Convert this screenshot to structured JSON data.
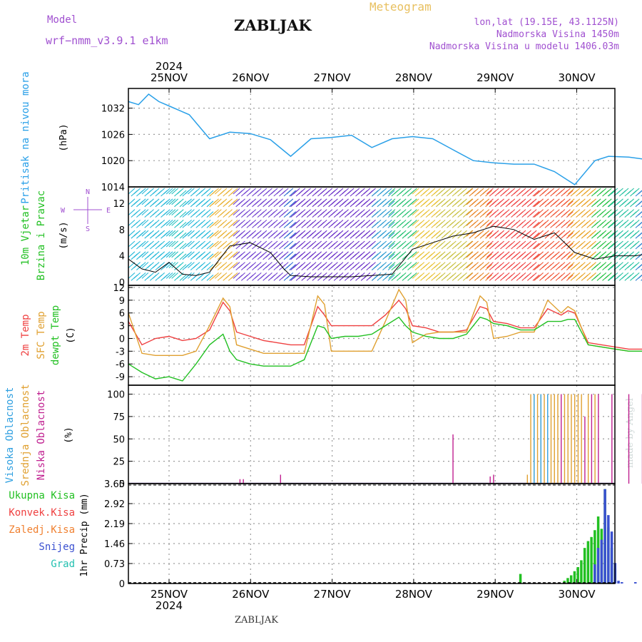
{
  "header": {
    "model_label": "Model",
    "model_name": "wrf−nmm_v3.9.1  e1km",
    "station": "ZABLJAK",
    "title": "Meteogram",
    "location": "lon,lat (19.15E, 43.1125N)",
    "elevation": "Nadmorska Visina 1450m",
    "model_elevation": "Nadmorska Visina u modelu 1406.03m",
    "footer_station": "ZABLJAK",
    "watermark": "made by Angel"
  },
  "time_axis": {
    "year": "2024",
    "days": [
      "25NOV",
      "26NOV",
      "27NOV",
      "28NOV",
      "29NOV",
      "30NOV"
    ]
  },
  "colors": {
    "pressure": "#2aa0e8",
    "temp": "#ef4040",
    "sfc": "#e0a030",
    "dewpt": "#22c022",
    "high_cloud": "#30a0e0",
    "mid_cloud": "#e0a030",
    "low_cloud": "#c02090",
    "total_precip": "#22c022",
    "snow": "#3a50d0",
    "convective": "#ef4040"
  },
  "chart_data": [
    {
      "type": "line",
      "panel": "pressure",
      "ylabel_lines": [
        "Pritisak na nivou mora",
        "(hPa)"
      ],
      "yticks": [
        1014,
        1020,
        1026,
        1032
      ],
      "ylim": [
        1014,
        1036.5
      ],
      "x_hours": [
        0,
        3,
        6,
        9,
        12,
        18,
        24,
        30,
        36,
        42,
        48,
        54,
        60,
        66,
        72,
        78,
        84,
        90,
        96,
        102,
        108,
        114,
        120,
        126,
        132,
        138,
        142,
        148,
        154,
        160,
        168
      ],
      "series": [
        {
          "name": "",
          "values": [
            1033.5,
            1032.8,
            1035.2,
            1033.5,
            1032.5,
            1030.5,
            1025.0,
            1026.5,
            1026.2,
            1024.8,
            1021.0,
            1025.0,
            1025.3,
            1025.8,
            1023.0,
            1025.0,
            1025.5,
            1025.0,
            1022.5,
            1020.0,
            1019.5,
            1019.2,
            1019.2,
            1017.5,
            1014.5,
            1020.0,
            1021.0,
            1020.8,
            1020.2,
            1020.8,
            1020.2
          ]
        }
      ]
    },
    {
      "type": "line",
      "panel": "wind",
      "title_lines": [
        "10m Vjetar",
        "Brzina i Pravac",
        "(m/s)"
      ],
      "direction_key": [
        "N",
        "W",
        "E",
        "S"
      ],
      "yticks": [
        0,
        4,
        8,
        12
      ],
      "ylim": [
        -0.5,
        14.5
      ],
      "x_hours": [
        0,
        4,
        8,
        12,
        16,
        20,
        24,
        30,
        36,
        42,
        46,
        48,
        54,
        60,
        66,
        72,
        78,
        84,
        90,
        96,
        102,
        108,
        114,
        120,
        126,
        132,
        138,
        144,
        150,
        156,
        162,
        168
      ],
      "series": [
        {
          "name": "",
          "values": [
            3.5,
            2.0,
            1.5,
            3.0,
            1.2,
            1.0,
            1.5,
            5.5,
            6.0,
            4.5,
            2.0,
            1.0,
            0.8,
            0.8,
            0.8,
            1.0,
            1.2,
            5.0,
            6.0,
            7.0,
            7.5,
            8.5,
            8.0,
            6.5,
            7.5,
            4.5,
            3.5,
            4.0,
            4.0,
            4.5,
            4.0,
            2.0
          ]
        }
      ]
    },
    {
      "type": "line",
      "panel": "temperature",
      "ylabel_lines": [
        "2m Temp",
        "SFC Temp",
        "dewpt Temp",
        "(C)"
      ],
      "yticks": [
        -9,
        -6,
        -3,
        0,
        3,
        6,
        9,
        12
      ],
      "ylim": [
        -11,
        12.5
      ],
      "x_hours": [
        0,
        4,
        8,
        12,
        16,
        20,
        24,
        28,
        30,
        32,
        36,
        40,
        44,
        48,
        52,
        56,
        58,
        60,
        64,
        68,
        72,
        76,
        80,
        82,
        84,
        88,
        92,
        96,
        100,
        104,
        106,
        108,
        112,
        116,
        120,
        124,
        128,
        130,
        132,
        136,
        140,
        144,
        148,
        152,
        156,
        160,
        164,
        168
      ],
      "series": [
        {
          "name": "2m Temp",
          "values": [
            4.0,
            -1.5,
            0.0,
            0.5,
            -0.5,
            0.0,
            2.0,
            8.5,
            6.5,
            1.5,
            0.5,
            -0.5,
            -1.0,
            -1.5,
            -1.5,
            7.5,
            5.5,
            3.0,
            3.0,
            3.0,
            3.0,
            5.5,
            9.0,
            7.0,
            3.0,
            2.5,
            1.5,
            1.5,
            2.0,
            7.5,
            7.0,
            4.0,
            3.5,
            2.5,
            2.5,
            7.0,
            5.5,
            6.5,
            6.0,
            -1.0,
            -1.5,
            -2.0,
            -2.5,
            -2.5,
            -2.0,
            -2.0,
            -2.0,
            -2.5
          ]
        },
        {
          "name": "SFC Temp",
          "values": [
            6.0,
            -3.5,
            -4.0,
            -4.0,
            -4.0,
            -3.0,
            3.0,
            9.5,
            7.5,
            -1.5,
            -2.5,
            -3.5,
            -3.5,
            -3.5,
            -3.5,
            10.0,
            8.0,
            -3.0,
            -3.0,
            -3.0,
            -3.0,
            4.0,
            11.5,
            9.0,
            -1.0,
            1.0,
            1.5,
            1.5,
            1.5,
            10.0,
            8.5,
            0.0,
            0.5,
            1.5,
            1.5,
            9.0,
            6.0,
            7.5,
            6.5,
            -1.5,
            -2.0,
            -2.5,
            -3.0,
            -3.0,
            -2.5,
            -2.5,
            0.5,
            -0.5
          ]
        },
        {
          "name": "dewpt Temp",
          "values": [
            -6.0,
            -8.0,
            -9.5,
            -9.0,
            -10.0,
            -6.0,
            -1.5,
            1.0,
            -3.0,
            -5.0,
            -6.0,
            -6.5,
            -6.5,
            -6.5,
            -5.0,
            3.0,
            2.5,
            0.0,
            0.5,
            0.5,
            1.0,
            3.0,
            5.0,
            3.0,
            1.5,
            0.5,
            0.0,
            0.0,
            1.0,
            5.0,
            4.5,
            3.5,
            3.0,
            2.0,
            2.0,
            4.0,
            4.0,
            4.5,
            4.5,
            -1.5,
            -2.0,
            -2.5,
            -3.0,
            -3.0,
            -3.0,
            -3.0,
            -3.5,
            -4.0
          ]
        }
      ]
    },
    {
      "type": "bar",
      "panel": "cloud",
      "ylabel_lines": [
        "Visoka Oblacnost",
        "Srednja Oblacnost",
        "Niska Oblacnost",
        "(%)"
      ],
      "yticks": [
        0,
        25,
        50,
        75,
        100
      ],
      "ylim": [
        0,
        110
      ],
      "series": [
        {
          "name": "Niska Oblacnost",
          "hours": [
            33,
            34,
            45,
            96,
            107,
            108,
            128,
            135,
            137,
            139,
            143,
            148,
            152,
            158,
            161,
            164,
            166,
            167
          ],
          "values": [
            5,
            5,
            10,
            55,
            8,
            10,
            100,
            75,
            100,
            100,
            100,
            100,
            100,
            100,
            100,
            100,
            100,
            100
          ]
        },
        {
          "name": "Srednja Oblacnost",
          "hours": [
            118,
            119,
            120,
            121,
            122,
            123,
            125,
            126,
            127,
            129,
            130,
            131,
            132,
            133,
            134,
            136,
            138
          ],
          "values": [
            10,
            100,
            100,
            100,
            100,
            100,
            100,
            100,
            100,
            100,
            100,
            100,
            100,
            100,
            100,
            100,
            100
          ]
        },
        {
          "name": "Visoka Oblacnost",
          "hours": [
            120,
            122,
            124
          ],
          "values": [
            100,
            100,
            100
          ]
        }
      ]
    },
    {
      "type": "bar",
      "panel": "precip",
      "legend": [
        "Ukupna Kisa",
        "Konvek.Kisa",
        "Zaledj.Kisa",
        "Snijeg",
        "Grad"
      ],
      "ylabel": "1hr Precip (mm)",
      "yticks": [
        0,
        0.73,
        1.46,
        2.19,
        2.92,
        3.65
      ],
      "ylim": [
        0,
        3.65
      ],
      "series": [
        {
          "name": "Ukupna Kisa",
          "hours": [
            116,
            129,
            130,
            131,
            132,
            133,
            134,
            135,
            136,
            137,
            138,
            139,
            140,
            141,
            142,
            143,
            144
          ],
          "values": [
            0.35,
            0.1,
            0.2,
            0.3,
            0.45,
            0.6,
            0.85,
            1.3,
            1.55,
            1.7,
            1.95,
            2.45,
            2.0,
            3.45,
            2.05,
            1.3,
            0.55
          ]
        },
        {
          "name": "Snijeg",
          "hours": [
            138,
            139,
            140,
            141,
            142,
            143,
            144,
            145,
            146,
            150,
            155,
            158
          ],
          "values": [
            0.7,
            1.3,
            1.6,
            3.45,
            2.5,
            1.9,
            0.75,
            0.1,
            0.05,
            0.05,
            0.05,
            0.05
          ]
        }
      ]
    }
  ]
}
